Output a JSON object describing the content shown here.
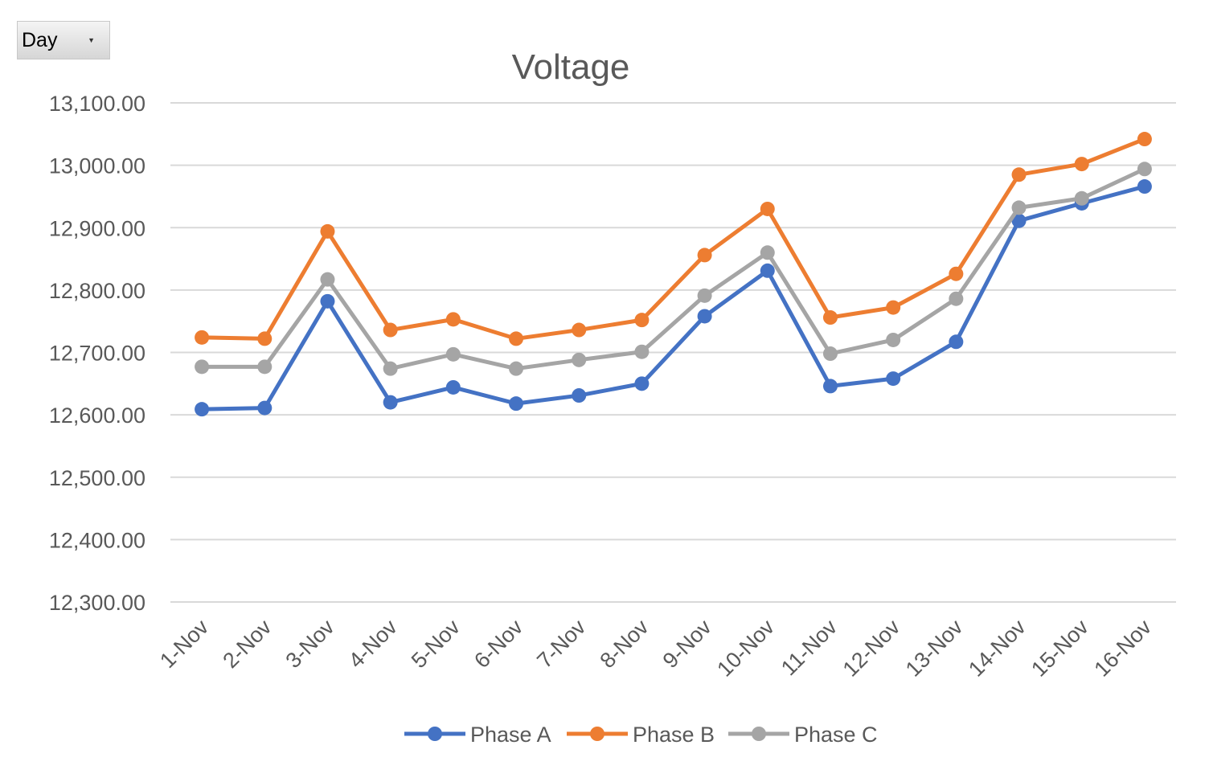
{
  "filter": {
    "label": "Day"
  },
  "chart_data": {
    "type": "line",
    "title": "Voltage",
    "xlabel": "",
    "ylabel": "",
    "ylim": [
      12300,
      13100
    ],
    "yticks": [
      12300,
      12400,
      12500,
      12600,
      12700,
      12800,
      12900,
      13000,
      13100
    ],
    "ytick_labels": [
      "12,300.00",
      "12,400.00",
      "12,500.00",
      "12,600.00",
      "12,700.00",
      "12,800.00",
      "12,900.00",
      "13,000.00",
      "13,100.00"
    ],
    "grid": true,
    "legend": "bottom",
    "categories": [
      "1-Nov",
      "2-Nov",
      "3-Nov",
      "4-Nov",
      "5-Nov",
      "6-Nov",
      "7-Nov",
      "8-Nov",
      "9-Nov",
      "10-Nov",
      "11-Nov",
      "12-Nov",
      "13-Nov",
      "14-Nov",
      "15-Nov",
      "16-Nov"
    ],
    "series": [
      {
        "name": "Phase A",
        "color": "#4472c4",
        "values": [
          12609,
          12611,
          12782,
          12620,
          12644,
          12618,
          12631,
          12650,
          12758,
          12831,
          12646,
          12658,
          12717,
          12911,
          12939,
          12966
        ]
      },
      {
        "name": "Phase B",
        "color": "#ed7d31",
        "values": [
          12724,
          12722,
          12894,
          12736,
          12753,
          12722,
          12736,
          12752,
          12856,
          12930,
          12756,
          12772,
          12826,
          12985,
          13002,
          13042
        ]
      },
      {
        "name": "Phase C",
        "color": "#a5a5a5",
        "values": [
          12677,
          12677,
          12817,
          12674,
          12697,
          12674,
          12688,
          12701,
          12791,
          12860,
          12698,
          12720,
          12786,
          12932,
          12947,
          12994
        ]
      }
    ]
  }
}
